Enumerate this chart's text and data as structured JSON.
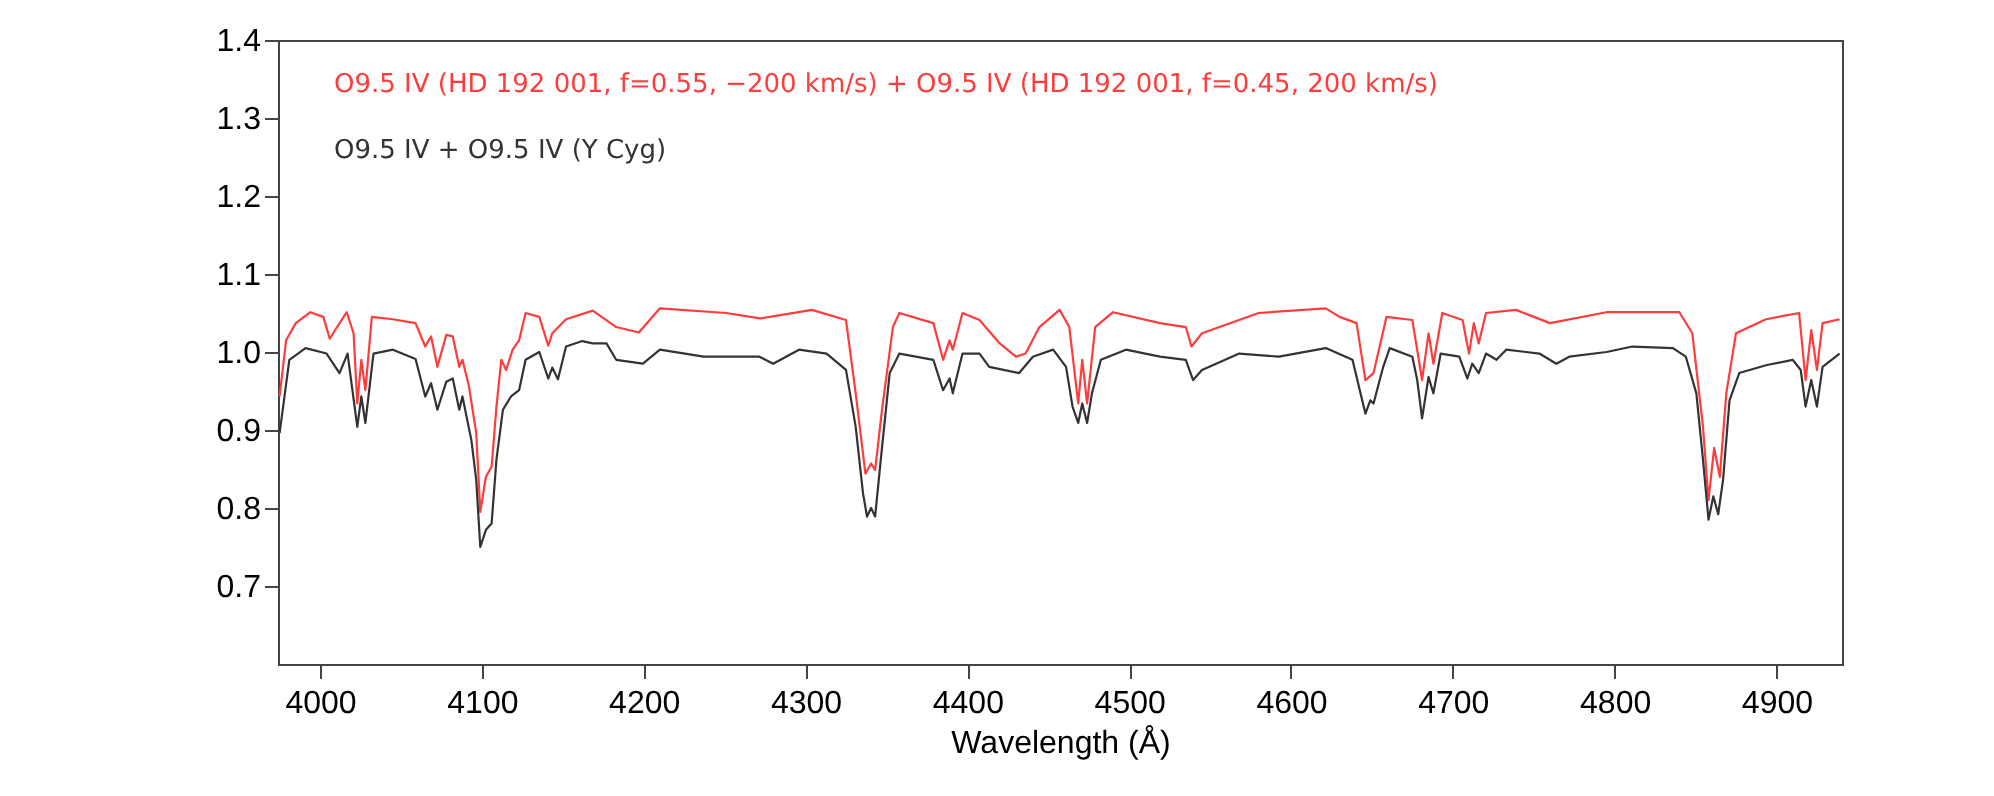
{
  "chart_data": {
    "type": "line",
    "xlabel": "Wavelength (Å)",
    "xlim": [
      3974,
      4940.5
    ],
    "ylim": [
      0.6,
      1.4
    ],
    "xticks": [
      4000,
      4100,
      4200,
      4300,
      4400,
      4500,
      4600,
      4700,
      4800,
      4900
    ],
    "yticks": [
      0.7,
      0.8,
      0.9,
      {
        "value": 1,
        "label": "1.0"
      },
      1.1,
      1.2,
      1.3,
      1.4
    ],
    "grid": false,
    "legend": false,
    "series": [
      {
        "name": "O9.5 IV  (HD 192 001, f=0.55, −200 km/s) + O9.5 IV  (HD 192 001, f=0.45, 200 km/s)",
        "color": "#ff3c3c",
        "x": [
          3975,
          3979,
          3985,
          3994,
          4002,
          4006,
          4010.5,
          4016.5,
          4020.7,
          4023,
          4025.5,
          4028,
          4032,
          4045,
          4059,
          4065,
          4068.6,
          4072.5,
          4078,
          4082,
          4086,
          4088,
          4092,
          4096.5,
          4099,
          4102.5,
          4106,
          4109,
          4112,
          4115,
          4119,
          4123,
          4127,
          4135.5,
          4141,
          4143.5,
          4152,
          4168.5,
          4183,
          4197,
          4210,
          4251,
          4272,
          4304,
          4325,
          4331,
          4337,
          4340.5,
          4343,
          4347.5,
          4354,
          4358,
          4379,
          4385,
          4389,
          4391,
          4397,
          4407.5,
          4420,
          4430,
          4436,
          4444.5,
          4457,
          4463,
          4468.5,
          4471,
          4474,
          4479,
          4490,
          4519,
          4535,
          4538.5,
          4545,
          4580,
          4621.5,
          4630,
          4640.5,
          4646,
          4651,
          4659,
          4675,
          4681,
          4685,
          4688,
          4693.5,
          4706,
          4710,
          4713,
          4716,
          4720.5,
          4739,
          4760,
          4795,
          4840,
          4848,
          4854.6,
          4858,
          4861.5,
          4865,
          4869,
          4875,
          4893.5,
          4914,
          4918,
          4921.5,
          4925,
          4928.5,
          4939
        ],
        "values": [
          0.943,
          1.015,
          1.037,
          1.051,
          1.045,
          1.017,
          1.032,
          1.051,
          1.024,
          0.934,
          0.99,
          0.951,
          1.045,
          1.042,
          1.037,
          1.007,
          1.02,
          0.981,
          1.022,
          1.02,
          0.981,
          0.99,
          0.956,
          0.896,
          0.795,
          0.84,
          0.853,
          0.93,
          0.99,
          0.977,
          1.003,
          1.015,
          1.05,
          1.045,
          1.008,
          1.024,
          1.042,
          1.053,
          1.032,
          1.025,
          1.056,
          1.05,
          1.043,
          1.054,
          1.041,
          0.947,
          0.844,
          0.857,
          0.849,
          0.93,
          1.032,
          1.05,
          1.037,
          0.99,
          1.015,
          1.003,
          1.05,
          1.041,
          1.011,
          0.994,
          0.998,
          1.032,
          1.054,
          1.032,
          0.934,
          0.99,
          0.934,
          1.032,
          1.051,
          1.037,
          1.032,
          1.007,
          1.024,
          1.05,
          1.056,
          1.045,
          1.037,
          0.964,
          0.973,
          1.045,
          1.041,
          0.964,
          1.024,
          0.985,
          1.05,
          1.041,
          0.998,
          1.037,
          1.011,
          1.05,
          1.054,
          1.037,
          1.051,
          1.051,
          1.024,
          0.904,
          0.81,
          0.877,
          0.84,
          0.947,
          1.024,
          1.042,
          1.05,
          0.964,
          1.028,
          0.977,
          1.037,
          1.042
        ]
      },
      {
        "name": "O9.5 IV + O9.5 IV (Y Cyg)",
        "color": "#333333",
        "x": [
          3975,
          3981,
          3991,
          4004,
          4012,
          4017,
          4023,
          4025.5,
          4028,
          4033,
          4045,
          4059,
          4065,
          4068.6,
          4072.5,
          4078,
          4082,
          4086,
          4088,
          4093.5,
          4096.5,
          4099,
          4102.5,
          4106,
          4109,
          4113,
          4118,
          4123,
          4127,
          4135.5,
          4141,
          4143.5,
          4147,
          4152,
          4162,
          4168.5,
          4177,
          4183,
          4199.5,
          4210,
          4237,
          4251,
          4271.5,
          4280,
          4296,
          4313,
          4325,
          4331,
          4335.5,
          4338,
          4340.5,
          4343,
          4346.5,
          4352,
          4358,
          4379,
          4385,
          4389,
          4391,
          4397,
          4407.5,
          4413.5,
          4432,
          4440.5,
          4453,
          4461,
          4465,
          4468.5,
          4471,
          4474,
          4477,
          4482.5,
          4498,
          4519,
          4535,
          4539.5,
          4545,
          4568,
          4592.5,
          4621.5,
          4638,
          4642.5,
          4646,
          4649,
          4651,
          4657,
          4661,
          4675,
          4678,
          4681,
          4685,
          4688,
          4692.5,
          4704,
          4709,
          4712,
          4716,
          4720.5,
          4727,
          4733,
          4753.5,
          4764,
          4772,
          4795,
          4811,
          4836,
          4844,
          4850.5,
          4854.6,
          4858,
          4861,
          4864,
          4867,
          4871,
          4877,
          4893.5,
          4910,
          4915,
          4918,
          4921.5,
          4925,
          4928.5,
          4939
        ],
        "values": [
          0.896,
          0.99,
          1.005,
          0.998,
          0.973,
          0.998,
          0.904,
          0.943,
          0.909,
          0.998,
          1.003,
          0.991,
          0.943,
          0.96,
          0.926,
          0.962,
          0.966,
          0.926,
          0.943,
          0.887,
          0.836,
          0.75,
          0.772,
          0.78,
          0.862,
          0.926,
          0.943,
          0.951,
          0.99,
          1.0,
          0.966,
          0.98,
          0.965,
          1.007,
          1.014,
          1.011,
          1.011,
          0.99,
          0.985,
          1.003,
          0.994,
          0.994,
          0.994,
          0.985,
          1.003,
          0.998,
          0.977,
          0.904,
          0.819,
          0.789,
          0.8,
          0.789,
          0.862,
          0.973,
          0.998,
          0.99,
          0.951,
          0.966,
          0.947,
          0.998,
          0.998,
          0.981,
          0.973,
          0.994,
          1.003,
          0.981,
          0.93,
          0.909,
          0.934,
          0.909,
          0.947,
          0.99,
          1.003,
          0.994,
          0.99,
          0.964,
          0.977,
          0.998,
          0.994,
          1.005,
          0.99,
          0.951,
          0.921,
          0.938,
          0.934,
          0.981,
          1.005,
          0.994,
          0.964,
          0.915,
          0.968,
          0.947,
          0.998,
          0.994,
          0.966,
          0.985,
          0.973,
          0.998,
          0.99,
          1.003,
          0.998,
          0.985,
          0.994,
          1.0,
          1.007,
          1.005,
          0.994,
          0.947,
          0.862,
          0.785,
          0.815,
          0.792,
          0.836,
          0.938,
          0.973,
          0.983,
          0.99,
          0.977,
          0.93,
          0.964,
          0.93,
          0.981,
          0.998
        ]
      }
    ]
  }
}
